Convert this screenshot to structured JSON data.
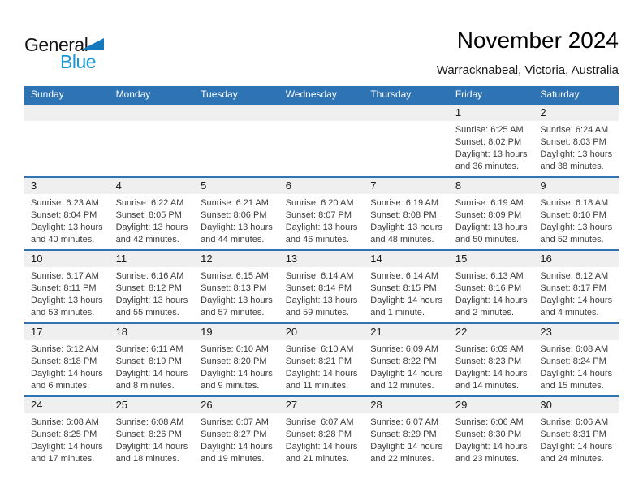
{
  "logo": {
    "general": "General",
    "blue": "Blue"
  },
  "header": {
    "title": "November 2024",
    "subtitle": "Warracknabeal, Victoria, Australia"
  },
  "colors": {
    "header_bg": "#2E74B5",
    "date_band": "#EFEFEF",
    "logo_blue": "#1898D6",
    "triangle_blue": "#1478BE"
  },
  "calendar": {
    "day_headers": [
      "Sunday",
      "Monday",
      "Tuesday",
      "Wednesday",
      "Thursday",
      "Friday",
      "Saturday"
    ],
    "labels": {
      "sunrise": "Sunrise:",
      "sunset": "Sunset:",
      "daylight": "Daylight:"
    },
    "weeks": [
      [
        null,
        null,
        null,
        null,
        null,
        {
          "date": "1",
          "sunrise": "6:25 AM",
          "sunset": "8:02 PM",
          "daylight": "13 hours and 36 minutes."
        },
        {
          "date": "2",
          "sunrise": "6:24 AM",
          "sunset": "8:03 PM",
          "daylight": "13 hours and 38 minutes."
        }
      ],
      [
        {
          "date": "3",
          "sunrise": "6:23 AM",
          "sunset": "8:04 PM",
          "daylight": "13 hours and 40 minutes."
        },
        {
          "date": "4",
          "sunrise": "6:22 AM",
          "sunset": "8:05 PM",
          "daylight": "13 hours and 42 minutes."
        },
        {
          "date": "5",
          "sunrise": "6:21 AM",
          "sunset": "8:06 PM",
          "daylight": "13 hours and 44 minutes."
        },
        {
          "date": "6",
          "sunrise": "6:20 AM",
          "sunset": "8:07 PM",
          "daylight": "13 hours and 46 minutes."
        },
        {
          "date": "7",
          "sunrise": "6:19 AM",
          "sunset": "8:08 PM",
          "daylight": "13 hours and 48 minutes."
        },
        {
          "date": "8",
          "sunrise": "6:19 AM",
          "sunset": "8:09 PM",
          "daylight": "13 hours and 50 minutes."
        },
        {
          "date": "9",
          "sunrise": "6:18 AM",
          "sunset": "8:10 PM",
          "daylight": "13 hours and 52 minutes."
        }
      ],
      [
        {
          "date": "10",
          "sunrise": "6:17 AM",
          "sunset": "8:11 PM",
          "daylight": "13 hours and 53 minutes."
        },
        {
          "date": "11",
          "sunrise": "6:16 AM",
          "sunset": "8:12 PM",
          "daylight": "13 hours and 55 minutes."
        },
        {
          "date": "12",
          "sunrise": "6:15 AM",
          "sunset": "8:13 PM",
          "daylight": "13 hours and 57 minutes."
        },
        {
          "date": "13",
          "sunrise": "6:14 AM",
          "sunset": "8:14 PM",
          "daylight": "13 hours and 59 minutes."
        },
        {
          "date": "14",
          "sunrise": "6:14 AM",
          "sunset": "8:15 PM",
          "daylight": "14 hours and 1 minute."
        },
        {
          "date": "15",
          "sunrise": "6:13 AM",
          "sunset": "8:16 PM",
          "daylight": "14 hours and 2 minutes."
        },
        {
          "date": "16",
          "sunrise": "6:12 AM",
          "sunset": "8:17 PM",
          "daylight": "14 hours and 4 minutes."
        }
      ],
      [
        {
          "date": "17",
          "sunrise": "6:12 AM",
          "sunset": "8:18 PM",
          "daylight": "14 hours and 6 minutes."
        },
        {
          "date": "18",
          "sunrise": "6:11 AM",
          "sunset": "8:19 PM",
          "daylight": "14 hours and 8 minutes."
        },
        {
          "date": "19",
          "sunrise": "6:10 AM",
          "sunset": "8:20 PM",
          "daylight": "14 hours and 9 minutes."
        },
        {
          "date": "20",
          "sunrise": "6:10 AM",
          "sunset": "8:21 PM",
          "daylight": "14 hours and 11 minutes."
        },
        {
          "date": "21",
          "sunrise": "6:09 AM",
          "sunset": "8:22 PM",
          "daylight": "14 hours and 12 minutes."
        },
        {
          "date": "22",
          "sunrise": "6:09 AM",
          "sunset": "8:23 PM",
          "daylight": "14 hours and 14 minutes."
        },
        {
          "date": "23",
          "sunrise": "6:08 AM",
          "sunset": "8:24 PM",
          "daylight": "14 hours and 15 minutes."
        }
      ],
      [
        {
          "date": "24",
          "sunrise": "6:08 AM",
          "sunset": "8:25 PM",
          "daylight": "14 hours and 17 minutes."
        },
        {
          "date": "25",
          "sunrise": "6:08 AM",
          "sunset": "8:26 PM",
          "daylight": "14 hours and 18 minutes."
        },
        {
          "date": "26",
          "sunrise": "6:07 AM",
          "sunset": "8:27 PM",
          "daylight": "14 hours and 19 minutes."
        },
        {
          "date": "27",
          "sunrise": "6:07 AM",
          "sunset": "8:28 PM",
          "daylight": "14 hours and 21 minutes."
        },
        {
          "date": "28",
          "sunrise": "6:07 AM",
          "sunset": "8:29 PM",
          "daylight": "14 hours and 22 minutes."
        },
        {
          "date": "29",
          "sunrise": "6:06 AM",
          "sunset": "8:30 PM",
          "daylight": "14 hours and 23 minutes."
        },
        {
          "date": "30",
          "sunrise": "6:06 AM",
          "sunset": "8:31 PM",
          "daylight": "14 hours and 24 minutes."
        }
      ]
    ]
  }
}
